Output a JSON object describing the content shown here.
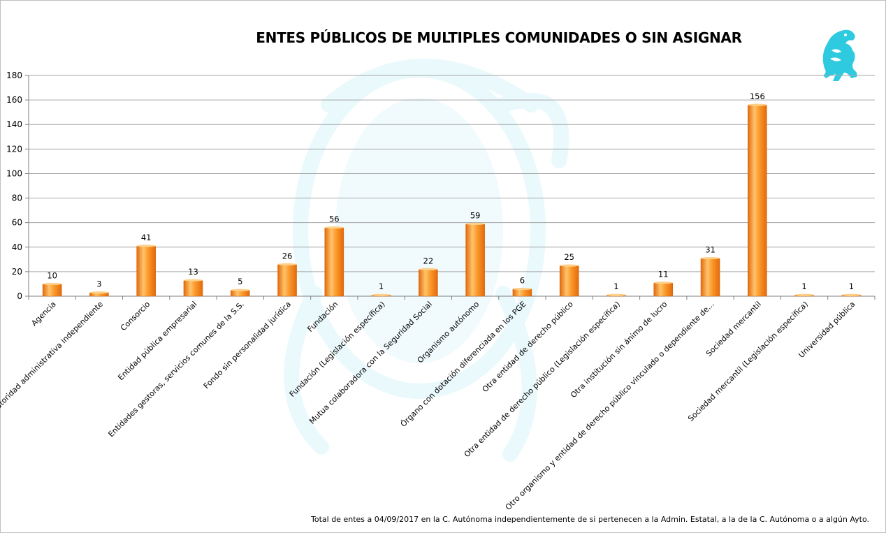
{
  "chart_data": {
    "type": "bar",
    "title": "ENTES PÚBLICOS DE MULTIPLES COMUNIDADES O SIN ASIGNAR",
    "categories": [
      "Agencia",
      "Autoridad administrativa independiente",
      "Consorcio",
      "Entidad pública empresarial",
      "Entidades gestoras, servicios comunes de la S.S.",
      "Fondo sin personalidad jurídica",
      "Fundación",
      "Fundación  (Legislación específica)",
      "Mutua colaboradora con la Seguridad Social",
      "Organismo autónomo",
      "Órgano con dotación diferenciada en los PGE",
      "Otra entidad de derecho público",
      "Otra entidad de derecho público (Legislación específica)",
      "Otra institución sin ánimo de lucro",
      "Otro organismo y entidad de derecho público vinculado o dependiente de...",
      "Sociedad mercantil",
      "Sociedad mercantil (Legislación específica)",
      "Universidad pública"
    ],
    "values": [
      10,
      3,
      41,
      13,
      5,
      26,
      56,
      1,
      22,
      59,
      6,
      25,
      1,
      11,
      31,
      156,
      1,
      1
    ],
    "data_labels": [
      "10",
      "3",
      "41",
      "13",
      "5",
      "26",
      "56",
      "1",
      "22",
      "59",
      "6",
      "25",
      "1",
      "11",
      "31",
      "156",
      "1",
      "1"
    ],
    "ylim": [
      0,
      180
    ],
    "yticks": [
      "0",
      "20",
      "40",
      "60",
      "80",
      "100",
      "120",
      "140",
      "160",
      "180"
    ],
    "grid": true,
    "legend": "none",
    "colors": {
      "bar_light": "#ffc46b",
      "bar_mid": "#fb9a2c",
      "bar_dark": "#e26a0c",
      "grid": "#a6a6a6",
      "logo": "#2ecbe0",
      "watermark": "#e7f8fb"
    }
  },
  "footnote": "Total de entes  a 04/09/2017 en  la C. Autónoma  independientemente  de si pertenecen  a la Admin. Estatal, a  la de la C. Autónoma  o a algún Ayto.",
  "logo_icon": "griffin-logo-icon",
  "watermark_icon": "eagle-watermark-icon"
}
